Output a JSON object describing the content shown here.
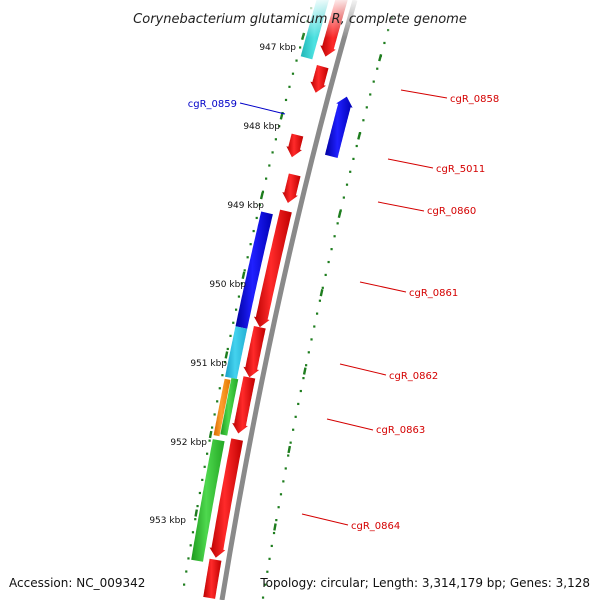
{
  "title": "Corynebacterium glutamicum R, complete genome",
  "footer": {
    "accession": "Accession: NC_009342",
    "summary": "Topology: circular; Length: 3,314,179 bp; Genes: 3,128"
  },
  "colors": {
    "backbone": "#8a8a8a",
    "scale": "#1e7d1e",
    "forward_label": "#0000c8",
    "reverse_label": "#d40000"
  },
  "kbp_labels": [
    {
      "id": "947",
      "text": "947 kbp"
    },
    {
      "id": "948",
      "text": "948 kbp"
    },
    {
      "id": "949",
      "text": "949 kbp"
    },
    {
      "id": "950",
      "text": "950 kbp"
    },
    {
      "id": "951",
      "text": "951 kbp"
    },
    {
      "id": "952",
      "text": "952 kbp"
    },
    {
      "id": "953",
      "text": "953 kbp"
    }
  ],
  "gene_labels": [
    {
      "id": "cgR_0859",
      "text": "cgR_0859",
      "strand": "forward"
    },
    {
      "id": "cgR_0858",
      "text": "cgR_0858",
      "strand": "reverse"
    },
    {
      "id": "cgR_5011",
      "text": "cgR_5011",
      "strand": "reverse"
    },
    {
      "id": "cgR_0860",
      "text": "cgR_0860",
      "strand": "reverse"
    },
    {
      "id": "cgR_0861",
      "text": "cgR_0861",
      "strand": "reverse"
    },
    {
      "id": "cgR_0862",
      "text": "cgR_0862",
      "strand": "reverse"
    },
    {
      "id": "cgR_0863",
      "text": "cgR_0863",
      "strand": "reverse"
    },
    {
      "id": "cgR_0864",
      "text": "cgR_0864",
      "strand": "reverse"
    }
  ]
}
